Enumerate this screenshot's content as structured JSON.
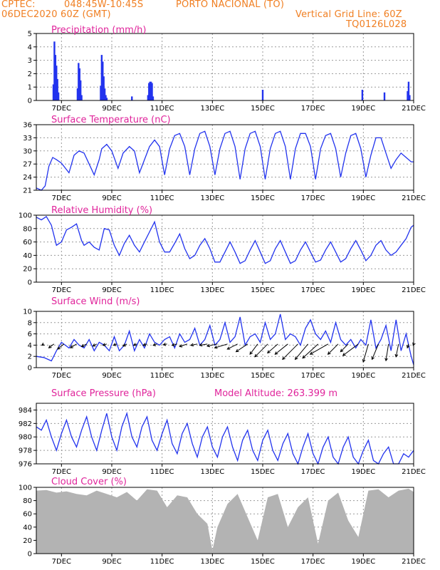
{
  "header": {
    "source": "CPTEC:",
    "coords": "048:45W-10:45S",
    "station": "PORTO NACIONAL (TO)",
    "run": "06DEC2020 60Z (GMT)",
    "grid_note": "Vertical Grid Line: 60Z",
    "code": "TQ0126L028"
  },
  "colors": {
    "header": "#f07f22",
    "title": "#e0249b",
    "series": "#2233ee",
    "cloud": "#b3b3b3",
    "arrow": "#000000"
  },
  "chart_data": [
    {
      "type": "bar",
      "title": "Precipitation (mm/h)",
      "ylim": [
        0,
        5
      ],
      "yticks": [
        "0",
        "1",
        "2",
        "3",
        "4",
        "5"
      ],
      "xticks": [
        "7DEC",
        "9DEC",
        "11DEC",
        "13DEC",
        "15DEC",
        "17DEC",
        "19DEC",
        "21DEC"
      ],
      "xrange_days": [
        6.0,
        21.0
      ],
      "x": [
        6.68,
        6.72,
        6.76,
        6.8,
        6.84,
        6.88,
        7.64,
        7.68,
        7.72,
        7.76,
        7.8,
        8.56,
        8.6,
        8.64,
        8.68,
        8.72,
        8.76,
        8.8,
        9.8,
        10.44,
        10.48,
        10.52,
        10.56,
        10.6,
        10.64,
        15.0,
        18.96,
        19.84,
        20.76,
        20.8,
        20.84
      ],
      "values": [
        1.2,
        4.4,
        3.4,
        2.6,
        1.6,
        0.6,
        0.9,
        2.8,
        2.4,
        1.5,
        0.4,
        1.1,
        3.4,
        2.9,
        1.8,
        0.9,
        0.4,
        0.2,
        0.3,
        0.4,
        1.3,
        1.4,
        1.4,
        1.3,
        0.3,
        0.8,
        0.8,
        0.6,
        0.7,
        1.4,
        0.4
      ]
    },
    {
      "type": "line",
      "title": "Surface Temperature (nC)",
      "ylim": [
        21,
        36
      ],
      "yticks": [
        "21",
        "24",
        "27",
        "30",
        "33",
        "36"
      ],
      "xticks": [
        "7DEC",
        "9DEC",
        "11DEC",
        "13DEC",
        "15DEC",
        "17DEC",
        "19DEC",
        "21DEC"
      ],
      "x": [
        6.0,
        6.2,
        6.35,
        6.5,
        6.65,
        6.8,
        7.0,
        7.3,
        7.5,
        7.7,
        7.9,
        8.1,
        8.3,
        8.5,
        8.6,
        8.8,
        9.0,
        9.25,
        9.45,
        9.7,
        9.9,
        10.1,
        10.3,
        10.5,
        10.7,
        10.9,
        11.1,
        11.3,
        11.5,
        11.7,
        11.9,
        12.1,
        12.3,
        12.5,
        12.7,
        12.9,
        13.1,
        13.3,
        13.5,
        13.7,
        13.9,
        14.1,
        14.3,
        14.5,
        14.7,
        14.9,
        15.1,
        15.3,
        15.5,
        15.7,
        15.9,
        16.1,
        16.3,
        16.5,
        16.7,
        16.9,
        17.1,
        17.3,
        17.5,
        17.7,
        17.9,
        18.1,
        18.3,
        18.5,
        18.7,
        18.9,
        19.1,
        19.3,
        19.5,
        19.7,
        19.9,
        20.1,
        20.3,
        20.5,
        20.7,
        20.9,
        21.0
      ],
      "values": [
        21.5,
        21.0,
        22.0,
        26.5,
        28.5,
        28.0,
        27.2,
        25.0,
        29.0,
        30.0,
        29.5,
        27.0,
        24.5,
        28.0,
        30.5,
        31.5,
        30.0,
        26.0,
        29.5,
        31.0,
        30.0,
        25.0,
        28.0,
        31.0,
        32.5,
        31.0,
        24.5,
        30.5,
        33.5,
        34.0,
        31.0,
        24.5,
        30.5,
        34.0,
        34.5,
        31.0,
        24.5,
        30.5,
        34.0,
        34.5,
        31.0,
        23.5,
        30.5,
        34.0,
        34.5,
        31.0,
        23.5,
        30.5,
        34.0,
        34.5,
        31.0,
        23.5,
        30.5,
        34.0,
        34.0,
        31.0,
        23.5,
        30.5,
        33.5,
        34.0,
        30.5,
        24.0,
        29.5,
        33.5,
        34.0,
        30.5,
        24.0,
        29.0,
        33.0,
        33.0,
        29.5,
        26.0,
        28.0,
        29.5,
        28.5,
        27.5,
        27.5
      ]
    },
    {
      "type": "line",
      "title": "Relative Humidity (%)",
      "ylim": [
        0,
        100
      ],
      "yticks": [
        "0",
        "20",
        "40",
        "60",
        "80",
        "100"
      ],
      "xticks": [
        "7DEC",
        "9DEC",
        "11DEC",
        "13DEC",
        "15DEC",
        "17DEC",
        "19DEC",
        "21DEC"
      ],
      "x": [
        6.0,
        6.2,
        6.4,
        6.6,
        6.8,
        7.0,
        7.2,
        7.4,
        7.6,
        7.8,
        7.9,
        8.1,
        8.3,
        8.5,
        8.7,
        8.9,
        9.1,
        9.3,
        9.5,
        9.7,
        9.9,
        10.1,
        10.3,
        10.5,
        10.7,
        10.9,
        11.1,
        11.3,
        11.5,
        11.7,
        11.9,
        12.1,
        12.3,
        12.5,
        12.7,
        12.9,
        13.1,
        13.3,
        13.5,
        13.7,
        13.9,
        14.1,
        14.3,
        14.5,
        14.7,
        14.9,
        15.1,
        15.3,
        15.5,
        15.7,
        15.9,
        16.1,
        16.3,
        16.5,
        16.7,
        16.9,
        17.1,
        17.3,
        17.5,
        17.7,
        17.9,
        18.1,
        18.3,
        18.5,
        18.7,
        18.9,
        19.1,
        19.3,
        19.5,
        19.7,
        19.9,
        20.1,
        20.3,
        20.5,
        20.7,
        20.9,
        21.0
      ],
      "values": [
        97,
        93,
        98,
        85,
        55,
        60,
        78,
        82,
        87,
        62,
        55,
        60,
        52,
        48,
        80,
        78,
        55,
        40,
        58,
        70,
        55,
        45,
        60,
        75,
        90,
        60,
        45,
        45,
        58,
        72,
        50,
        35,
        40,
        55,
        65,
        50,
        30,
        30,
        45,
        60,
        45,
        28,
        32,
        48,
        62,
        45,
        28,
        32,
        50,
        62,
        45,
        28,
        32,
        48,
        60,
        45,
        30,
        33,
        48,
        60,
        45,
        30,
        35,
        50,
        62,
        48,
        32,
        40,
        55,
        62,
        48,
        40,
        45,
        55,
        65,
        82,
        85
      ]
    },
    {
      "type": "line",
      "title": "Surface Wind (m/s)",
      "ylim": [
        0,
        10
      ],
      "yticks": [
        "0",
        "2",
        "4",
        "6",
        "8",
        "10"
      ],
      "xticks": [
        "7DEC",
        "9DEC",
        "11DEC",
        "13DEC",
        "15DEC",
        "17DEC",
        "19DEC",
        "21DEC"
      ],
      "x": [
        6.0,
        6.3,
        6.6,
        6.8,
        7.0,
        7.3,
        7.5,
        7.7,
        7.9,
        8.1,
        8.3,
        8.5,
        8.7,
        8.9,
        9.1,
        9.3,
        9.5,
        9.7,
        9.9,
        10.1,
        10.3,
        10.5,
        10.7,
        10.9,
        11.1,
        11.3,
        11.5,
        11.7,
        11.9,
        12.1,
        12.3,
        12.5,
        12.7,
        12.9,
        13.1,
        13.3,
        13.5,
        13.7,
        13.9,
        14.1,
        14.3,
        14.5,
        14.7,
        14.9,
        15.1,
        15.3,
        15.5,
        15.7,
        15.9,
        16.1,
        16.3,
        16.5,
        16.7,
        16.9,
        17.1,
        17.3,
        17.5,
        17.7,
        17.9,
        18.1,
        18.3,
        18.5,
        18.7,
        18.9,
        19.1,
        19.3,
        19.5,
        19.7,
        19.9,
        20.1,
        20.3,
        20.5,
        20.7,
        20.9,
        21.0
      ],
      "values": [
        2,
        1.8,
        1.2,
        3,
        4.5,
        3.5,
        5,
        4,
        3.5,
        5,
        3,
        4.5,
        4,
        3,
        5.5,
        3,
        4,
        6.5,
        3,
        5,
        3.5,
        6,
        4.5,
        4,
        5,
        5.5,
        3.5,
        6,
        4.5,
        5,
        7,
        4,
        5,
        7.5,
        4,
        5,
        8,
        4.5,
        5.5,
        9,
        4,
        5.5,
        6,
        4.5,
        8,
        5,
        6,
        9.5,
        5,
        6,
        5.5,
        4,
        7,
        8.5,
        6,
        5,
        6.5,
        4.5,
        8,
        5,
        4,
        5,
        3.5,
        5,
        4,
        8.5,
        3.5,
        5,
        7.5,
        3,
        8.5,
        3,
        6,
        2,
        0.5
      ],
      "arrows": {
        "x": [
          6.3,
          6.7,
          7.1,
          7.6,
          8.0,
          8.4,
          8.8,
          9.2,
          9.6,
          10.0,
          10.4,
          10.8,
          11.2,
          11.6,
          12.0,
          12.4,
          12.8,
          13.2,
          13.6,
          14.0,
          14.4,
          14.8,
          15.2,
          15.6,
          16.0,
          16.4,
          16.8,
          17.2,
          17.6,
          18.0,
          18.4,
          18.8,
          19.2,
          19.6,
          20.0,
          20.4,
          20.8,
          21.0
        ],
        "u": [
          0.8,
          2.0,
          2.5,
          2.4,
          2.0,
          1.5,
          1.5,
          1.3,
          1.5,
          1.3,
          1.5,
          1.5,
          1.5,
          2.0,
          3.0,
          2.5,
          3.0,
          4.0,
          5.0,
          4.0,
          4.5,
          3.0,
          5.0,
          4.0,
          5.0,
          6.0,
          5.0,
          6.0,
          7.0,
          4.0,
          3.0,
          6.0,
          2.0,
          2.5,
          1.0,
          1.0,
          0.5,
          0.2
        ],
        "v": [
          0.5,
          1.5,
          2.0,
          1.5,
          1.0,
          0.8,
          0.5,
          0.5,
          0.8,
          0.5,
          0.5,
          0.5,
          0.3,
          0.5,
          1.0,
          0.5,
          0.5,
          0.8,
          1.5,
          2.0,
          3.0,
          4.0,
          5.0,
          3.5,
          4.0,
          6.0,
          6.0,
          5.5,
          4.0,
          4.0,
          3.0,
          4.5,
          7.0,
          6.0,
          6.5,
          5.0,
          1.5,
          0.5
        ]
      }
    },
    {
      "type": "line",
      "title": "Surface Pressure (hPa)",
      "annotation": "Model Altitude: 263.399 m",
      "ylim": [
        976,
        985
      ],
      "yticks": [
        "976",
        "978",
        "980",
        "982",
        "984"
      ],
      "ytick_values": [
        976,
        978,
        980,
        982,
        984
      ],
      "xticks": [
        "7DEC",
        "9DEC",
        "11DEC",
        "13DEC",
        "15DEC",
        "17DEC",
        "19DEC",
        "21DEC"
      ],
      "x": [
        6.0,
        6.2,
        6.4,
        6.6,
        6.8,
        7.0,
        7.2,
        7.4,
        7.6,
        7.8,
        8.0,
        8.2,
        8.4,
        8.6,
        8.8,
        9.0,
        9.2,
        9.4,
        9.6,
        9.8,
        10.0,
        10.2,
        10.4,
        10.6,
        10.8,
        11.0,
        11.2,
        11.4,
        11.6,
        11.8,
        12.0,
        12.2,
        12.4,
        12.6,
        12.8,
        13.0,
        13.2,
        13.4,
        13.6,
        13.8,
        14.0,
        14.2,
        14.4,
        14.6,
        14.8,
        15.0,
        15.2,
        15.4,
        15.6,
        15.8,
        16.0,
        16.2,
        16.4,
        16.6,
        16.8,
        17.0,
        17.2,
        17.4,
        17.6,
        17.8,
        18.0,
        18.2,
        18.4,
        18.6,
        18.8,
        19.0,
        19.2,
        19.4,
        19.6,
        19.8,
        20.0,
        20.2,
        20.4,
        20.6,
        20.8,
        21.0
      ],
      "values": [
        981.5,
        981,
        982.5,
        980,
        978,
        980.5,
        982.5,
        980,
        978.5,
        981,
        983,
        980,
        978,
        981,
        983.5,
        980,
        978,
        981.5,
        983.5,
        980,
        978.5,
        981.5,
        983,
        979.5,
        978,
        980.5,
        982.5,
        979,
        977.5,
        980.5,
        982,
        979,
        977,
        980,
        981.5,
        978.5,
        977,
        980,
        981.5,
        978.5,
        976.5,
        979.5,
        981,
        978,
        976.5,
        979.5,
        981,
        978,
        976.5,
        979,
        980.5,
        977.5,
        976,
        978.5,
        980.5,
        977.5,
        976,
        978.5,
        980,
        977,
        976,
        978.5,
        980,
        977,
        975.5,
        978,
        979.5,
        976.5,
        975.5,
        977.5,
        978.5,
        976,
        975.5,
        977.5,
        977,
        978
      ]
    },
    {
      "type": "area",
      "title": "Cloud Cover (%)",
      "ylim": [
        0,
        100
      ],
      "yticks": [
        "0",
        "20",
        "40",
        "60",
        "80",
        "100"
      ],
      "xticks": [
        "7DEC",
        "9DEC",
        "11DEC",
        "13DEC",
        "15DEC",
        "17DEC",
        "19DEC",
        "21DEC"
      ],
      "x": [
        6.0,
        6.4,
        6.8,
        7.2,
        7.6,
        8.0,
        8.4,
        8.8,
        9.2,
        9.6,
        10.0,
        10.4,
        10.8,
        11.2,
        11.6,
        12.0,
        12.4,
        12.8,
        13.0,
        13.2,
        13.6,
        14.0,
        14.4,
        14.8,
        15.2,
        15.6,
        16.0,
        16.4,
        16.8,
        17.2,
        17.6,
        18.0,
        18.4,
        18.8,
        19.2,
        19.6,
        20.0,
        20.4,
        20.8,
        21.0
      ],
      "values": [
        95,
        96,
        92,
        94,
        90,
        88,
        95,
        90,
        85,
        93,
        80,
        97,
        95,
        70,
        88,
        85,
        60,
        45,
        5,
        40,
        75,
        90,
        55,
        20,
        85,
        90,
        40,
        70,
        85,
        15,
        80,
        92,
        50,
        25,
        95,
        97,
        85,
        95,
        98,
        93
      ]
    }
  ]
}
